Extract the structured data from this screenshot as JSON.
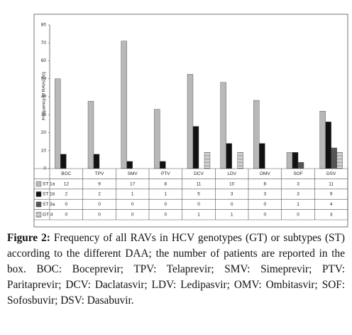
{
  "chart_data": {
    "type": "bar",
    "ylabel": "Frequency of RAVs (%)",
    "categories": [
      "BOC",
      "TPV",
      "SMV",
      "PTV",
      "DCV",
      "LDV",
      "OMV",
      "SOF",
      "DSV"
    ],
    "ylim": [
      0,
      80
    ],
    "yticks": [
      0,
      10,
      20,
      30,
      40,
      50,
      60,
      70,
      80
    ],
    "series": [
      {
        "name": "ST 1a",
        "color": "#b8b8b8",
        "hatch": false,
        "values": [
          50,
          37.5,
          71,
          33,
          52.5,
          48,
          38,
          9,
          32
        ],
        "counts": [
          "12",
          "9",
          "17",
          "8",
          "11",
          "10",
          "8",
          "3",
          "11"
        ]
      },
      {
        "name": "ST 1b",
        "color": "#111111",
        "hatch": false,
        "values": [
          8,
          8,
          4,
          4,
          23.5,
          14,
          14,
          9,
          26
        ],
        "counts": [
          "2",
          "2",
          "1",
          "1",
          "5",
          "3",
          "3",
          "3",
          "9"
        ]
      },
      {
        "name": "ST 3a",
        "color": "#555555",
        "hatch": false,
        "values": [
          0,
          0,
          0,
          0,
          0,
          0,
          0,
          3.5,
          11.5
        ],
        "counts": [
          "0",
          "0",
          "0",
          "0",
          "0",
          "0",
          "0",
          "1",
          "4"
        ]
      },
      {
        "name": "GT 4",
        "color": "#888888",
        "hatch": true,
        "values": [
          0,
          0,
          0,
          0,
          9,
          9,
          0,
          0,
          9
        ],
        "counts": [
          "0",
          "0",
          "0",
          "0",
          "1",
          "1",
          "0",
          "0",
          "3"
        ]
      }
    ]
  },
  "caption": {
    "label": "Figure 2:",
    "text": "Frequency of all RAVs in HCV genotypes (GT) or subtypes (ST) according to the different DAA; the number of patients are reported in the box. BOC: Boceprevir; TPV: Telaprevir; SMV: Simeprevir; PTV: Paritaprevir; DCV: Daclatasvir; LDV: Ledipasvir; OMV: Ombitasvir; SOF: Sofosbuvir; DSV: Dasabuvir."
  }
}
